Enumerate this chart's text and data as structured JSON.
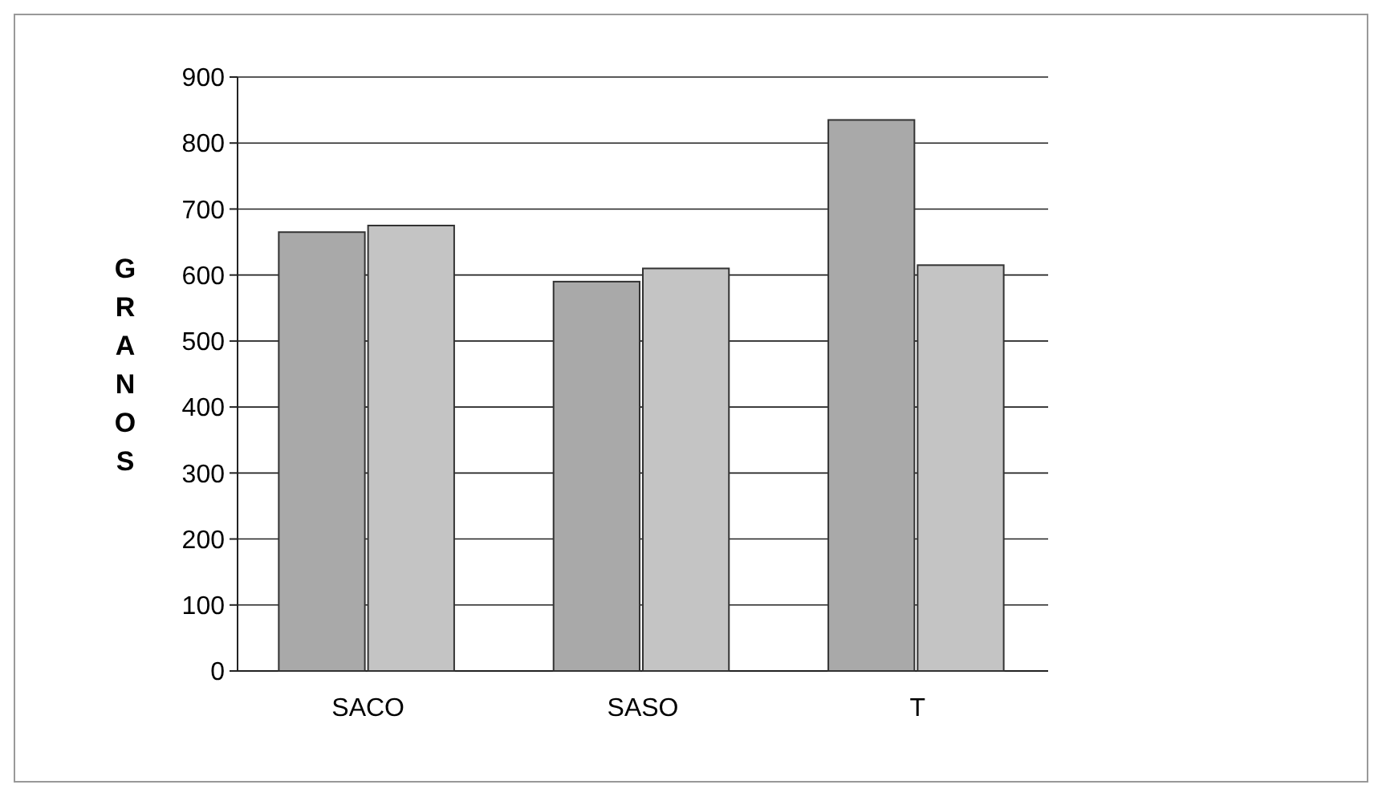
{
  "chart_data": {
    "type": "bar",
    "ylabel": "GRANOS",
    "categories": [
      "SACO",
      "SASO",
      "T"
    ],
    "series": [
      {
        "color": "#a9a9a9",
        "values": [
          665,
          590,
          835
        ]
      },
      {
        "color": "#c4c4c4",
        "values": [
          675,
          610,
          615
        ]
      }
    ],
    "ylim": [
      0,
      900
    ],
    "yticks": [
      0,
      100,
      200,
      300,
      400,
      500,
      600,
      700,
      800,
      900
    ],
    "grid": "y"
  }
}
